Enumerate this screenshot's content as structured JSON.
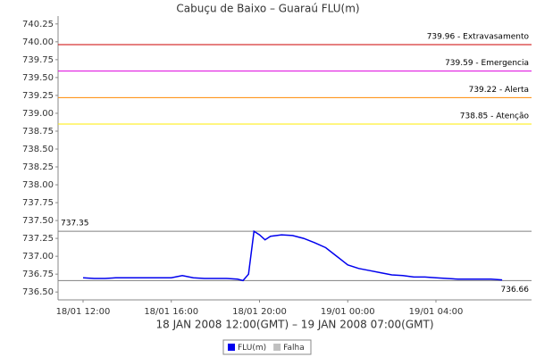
{
  "chart_data": {
    "type": "line",
    "title": "Cabuçu de Baixo – Guaraú FLU(m)",
    "x_label": "18 JAN 2008 12:00(GMT) – 19 JAN 2008 07:00(GMT)",
    "x": [
      "2008-01-18 12:00",
      "2008-01-18 12:30",
      "2008-01-18 13:00",
      "2008-01-18 13:30",
      "2008-01-18 14:00",
      "2008-01-18 14:30",
      "2008-01-18 15:00",
      "2008-01-18 15:30",
      "2008-01-18 16:00",
      "2008-01-18 16:30",
      "2008-01-18 17:00",
      "2008-01-18 17:30",
      "2008-01-18 18:00",
      "2008-01-18 18:30",
      "2008-01-18 19:00",
      "2008-01-18 19:15",
      "2008-01-18 19:30",
      "2008-01-18 19:45",
      "2008-01-18 20:00",
      "2008-01-18 20:15",
      "2008-01-18 20:30",
      "2008-01-18 21:00",
      "2008-01-18 21:30",
      "2008-01-18 22:00",
      "2008-01-18 22:30",
      "2008-01-18 23:00",
      "2008-01-18 23:30",
      "2008-01-19 00:00",
      "2008-01-19 00:30",
      "2008-01-19 01:00",
      "2008-01-19 01:30",
      "2008-01-19 02:00",
      "2008-01-19 02:30",
      "2008-01-19 03:00",
      "2008-01-19 03:30",
      "2008-01-19 04:00",
      "2008-01-19 04:30",
      "2008-01-19 05:00",
      "2008-01-19 05:30",
      "2008-01-19 06:00",
      "2008-01-19 06:30",
      "2008-01-19 07:00"
    ],
    "series": [
      {
        "name": "FLU(m)",
        "color": "#0000ee",
        "values": [
          736.7,
          736.69,
          736.69,
          736.7,
          736.7,
          736.7,
          736.7,
          736.7,
          736.7,
          736.73,
          736.7,
          736.69,
          736.69,
          736.69,
          736.68,
          736.66,
          736.75,
          737.35,
          737.3,
          737.23,
          737.28,
          737.3,
          737.29,
          737.25,
          737.19,
          737.12,
          737.0,
          736.88,
          736.83,
          736.8,
          736.77,
          736.74,
          736.73,
          736.71,
          736.71,
          736.7,
          736.69,
          736.68,
          736.68,
          736.68,
          736.68,
          736.67
        ]
      },
      {
        "name": "Falha",
        "color": "#c0c0c0",
        "values": [
          null,
          null,
          null,
          null,
          null,
          null,
          null,
          null,
          null,
          null,
          null,
          null,
          null,
          null,
          null,
          null,
          null,
          null,
          null,
          null,
          null,
          null,
          null,
          null,
          null,
          null,
          null,
          null,
          null,
          null,
          null,
          null,
          null,
          null,
          null,
          null,
          null,
          null,
          null,
          null,
          null,
          null
        ]
      }
    ],
    "markers": [
      {
        "value": 739.96,
        "label": "739.96 - Extravasamento",
        "color": "#cc0000"
      },
      {
        "value": 739.59,
        "label": "739.59 - Emergencia",
        "color": "#dd00dd"
      },
      {
        "value": 739.22,
        "label": "739.22 - Alerta",
        "color": "#ff8800"
      },
      {
        "value": 738.85,
        "label": "738.85 - Atenção",
        "color": "#ffee00"
      },
      {
        "value": 737.35,
        "label": "737.35",
        "color": "#808080"
      },
      {
        "value": 736.66,
        "label": "736.66",
        "color": "#808080"
      }
    ],
    "xlim": [
      "2008-01-18 10:52",
      "2008-01-19 08:20"
    ],
    "xticks": [
      {
        "value": "2008-01-18 12:00",
        "label": "18/01 12:00"
      },
      {
        "value": "2008-01-18 16:00",
        "label": "18/01 16:00"
      },
      {
        "value": "2008-01-18 20:00",
        "label": "18/01 20:00"
      },
      {
        "value": "2008-01-19 00:00",
        "label": "19/01 00:00"
      },
      {
        "value": "2008-01-19 04:00",
        "label": "19/01 04:00"
      }
    ],
    "ylim": [
      736.39,
      740.36
    ],
    "yticks": [
      {
        "value": 736.5,
        "label": "736.50"
      },
      {
        "value": 736.75,
        "label": "736.75"
      },
      {
        "value": 737,
        "label": "737.00"
      },
      {
        "value": 737.25,
        "label": "737.25"
      },
      {
        "value": 737.5,
        "label": "737.50"
      },
      {
        "value": 737.75,
        "label": "737.75"
      },
      {
        "value": 738,
        "label": "738.00"
      },
      {
        "value": 738.25,
        "label": "738.25"
      },
      {
        "value": 738.5,
        "label": "738.50"
      },
      {
        "value": 738.75,
        "label": "738.75"
      },
      {
        "value": 739,
        "label": "739.00"
      },
      {
        "value": 739.25,
        "label": "739.25"
      },
      {
        "value": 739.5,
        "label": "739.50"
      },
      {
        "value": 739.75,
        "label": "739.75"
      },
      {
        "value": 740,
        "label": "740.00"
      },
      {
        "value": 740.25,
        "label": "740.25"
      }
    ]
  }
}
